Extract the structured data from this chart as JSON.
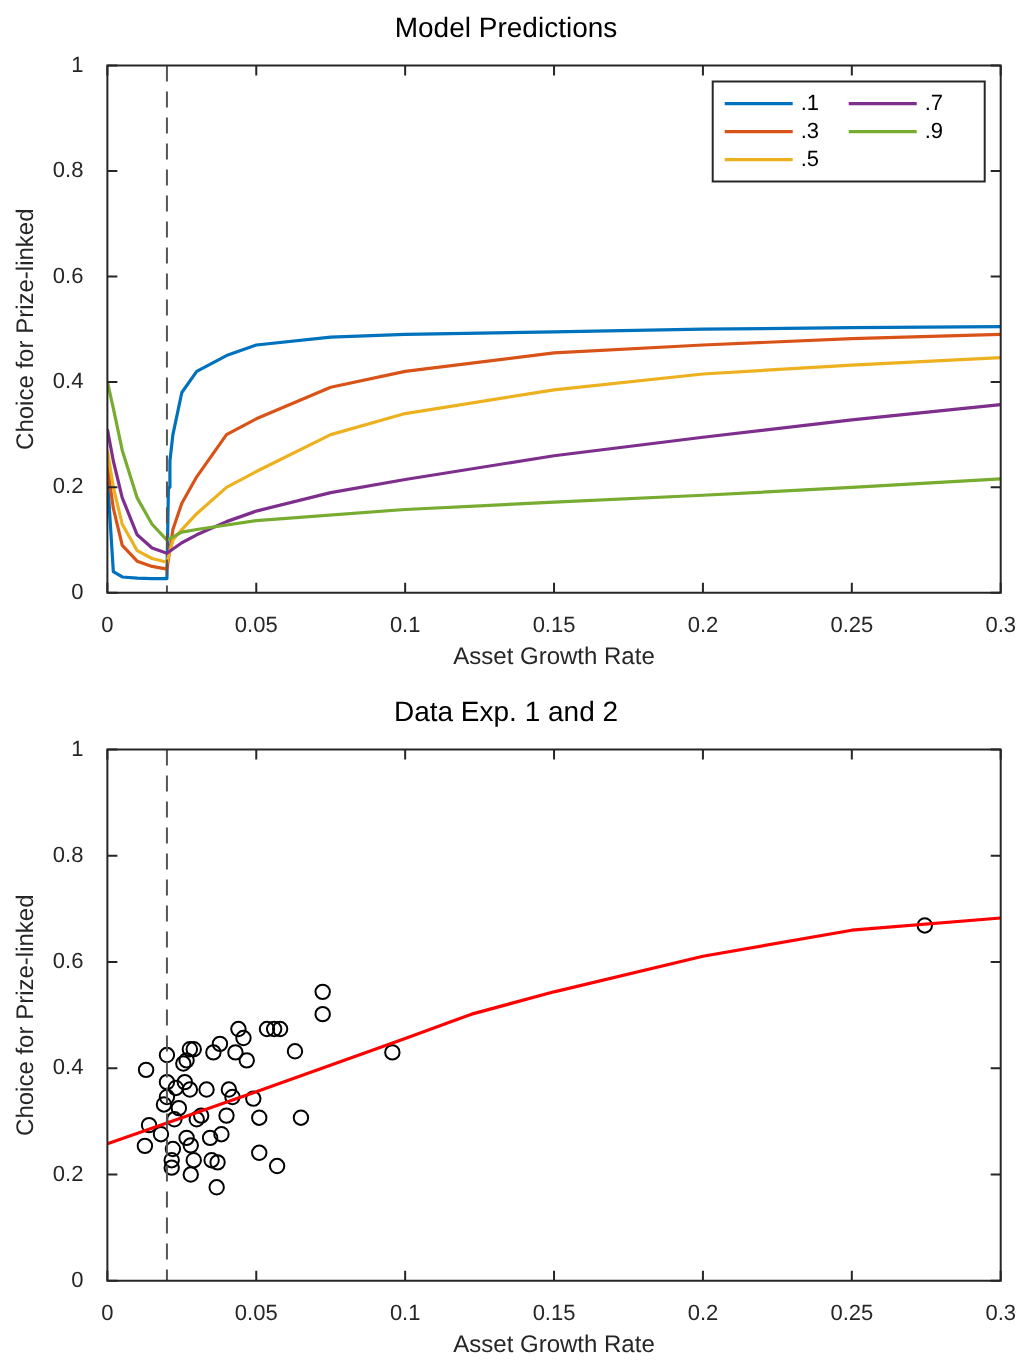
{
  "chart_data": [
    {
      "type": "line",
      "title": "Model Predictions",
      "xlabel": "Asset Growth Rate",
      "ylabel": "Choice for Prize-linked",
      "xlim": [
        0,
        0.3
      ],
      "ylim": [
        0,
        1
      ],
      "xticks": [
        0,
        0.05,
        0.1,
        0.15,
        0.2,
        0.25,
        0.3
      ],
      "yticks": [
        0,
        0.2,
        0.4,
        0.6,
        0.8,
        1
      ],
      "grid": false,
      "legend": "top right",
      "line_style": "solid",
      "ref_lines": [
        {
          "axis": "x",
          "value": 0.02,
          "color": "#555555",
          "line_style": "dashed"
        }
      ],
      "series": [
        {
          "name": ".1",
          "color": "#0072bd",
          "x": [
            0,
            0.002,
            0.005,
            0.01,
            0.015,
            0.02,
            0.0205,
            0.021,
            0.022,
            0.025,
            0.03,
            0.04,
            0.05,
            0.075,
            0.1,
            0.15,
            0.2,
            0.25,
            0.3
          ],
          "values": [
            0.22,
            0.04,
            0.03,
            0.028,
            0.027,
            0.027,
            0.2,
            0.25,
            0.3,
            0.38,
            0.42,
            0.45,
            0.47,
            0.485,
            0.49,
            0.495,
            0.5,
            0.503,
            0.505
          ]
        },
        {
          "name": ".3",
          "color": "#d95319",
          "x": [
            0,
            0.002,
            0.005,
            0.01,
            0.015,
            0.02,
            0.022,
            0.025,
            0.03,
            0.04,
            0.05,
            0.075,
            0.1,
            0.15,
            0.2,
            0.25,
            0.3
          ],
          "values": [
            0.24,
            0.16,
            0.09,
            0.06,
            0.05,
            0.045,
            0.12,
            0.17,
            0.22,
            0.3,
            0.33,
            0.39,
            0.42,
            0.455,
            0.47,
            0.482,
            0.49
          ]
        },
        {
          "name": ".5",
          "color": "#edb120",
          "x": [
            0,
            0.002,
            0.005,
            0.01,
            0.015,
            0.02,
            0.022,
            0.025,
            0.03,
            0.04,
            0.05,
            0.075,
            0.1,
            0.15,
            0.2,
            0.25,
            0.3
          ],
          "values": [
            0.27,
            0.2,
            0.13,
            0.08,
            0.065,
            0.058,
            0.1,
            0.12,
            0.15,
            0.2,
            0.23,
            0.3,
            0.34,
            0.385,
            0.415,
            0.432,
            0.446
          ]
        },
        {
          "name": ".7",
          "color": "#7e2f8e",
          "x": [
            0,
            0.002,
            0.005,
            0.01,
            0.015,
            0.02,
            0.025,
            0.03,
            0.04,
            0.05,
            0.075,
            0.1,
            0.15,
            0.2,
            0.25,
            0.3
          ],
          "values": [
            0.31,
            0.25,
            0.18,
            0.11,
            0.085,
            0.075,
            0.095,
            0.11,
            0.135,
            0.155,
            0.19,
            0.215,
            0.26,
            0.295,
            0.328,
            0.357
          ]
        },
        {
          "name": ".9",
          "color": "#77ac30",
          "x": [
            0,
            0.002,
            0.005,
            0.01,
            0.015,
            0.02,
            0.025,
            0.03,
            0.05,
            0.1,
            0.15,
            0.2,
            0.25,
            0.3
          ],
          "values": [
            0.4,
            0.35,
            0.27,
            0.18,
            0.13,
            0.1,
            0.115,
            0.12,
            0.137,
            0.158,
            0.172,
            0.185,
            0.2,
            0.216
          ]
        }
      ]
    },
    {
      "type": "scatter",
      "title": "Data Exp. 1 and 2",
      "xlabel": "Asset Growth Rate",
      "ylabel": "Choice for Prize-linked",
      "xlim": [
        0,
        0.3
      ],
      "ylim": [
        0,
        1
      ],
      "xticks": [
        0,
        0.05,
        0.1,
        0.15,
        0.2,
        0.25,
        0.3
      ],
      "yticks": [
        0,
        0.2,
        0.4,
        0.6,
        0.8,
        1
      ],
      "grid": false,
      "legend": false,
      "ref_lines": [
        {
          "axis": "x",
          "value": 0.02,
          "color": "#555555",
          "line_style": "dashed"
        }
      ],
      "series": [
        {
          "color": "#000000",
          "marker": "circle",
          "x": [
            0.013,
            0.02,
            0.02,
            0.0126,
            0.014,
            0.018,
            0.019,
            0.02,
            0.0216,
            0.0216,
            0.022,
            0.0225,
            0.023,
            0.024,
            0.0255,
            0.0266,
            0.0277,
            0.029,
            0.026,
            0.0277,
            0.0266,
            0.028,
            0.028,
            0.029,
            0.03,
            0.0315,
            0.0333,
            0.0345,
            0.035,
            0.0356,
            0.0367,
            0.0378,
            0.037,
            0.0383,
            0.04,
            0.0408,
            0.042,
            0.043,
            0.044,
            0.0457,
            0.0468,
            0.049,
            0.051,
            0.051,
            0.0536,
            0.056,
            0.058,
            0.057,
            0.063,
            0.065,
            0.0723,
            0.0723,
            0.0957,
            0.2745
          ],
          "values": [
            0.397,
            0.425,
            0.374,
            0.254,
            0.293,
            0.276,
            0.332,
            0.346,
            0.227,
            0.213,
            0.248,
            0.304,
            0.363,
            0.325,
            0.409,
            0.415,
            0.436,
            0.436,
            0.374,
            0.36,
            0.269,
            0.255,
            0.2,
            0.227,
            0.304,
            0.311,
            0.36,
            0.269,
            0.227,
            0.43,
            0.176,
            0.446,
            0.223,
            0.276,
            0.311,
            0.36,
            0.346,
            0.43,
            0.474,
            0.457,
            0.415,
            0.343,
            0.307,
            0.241,
            0.474,
            0.474,
            0.474,
            0.216,
            0.432,
            0.307,
            0.544,
            0.502,
            0.43,
            0.669
          ]
        },
        {
          "type": "line",
          "color": "#ff0000",
          "x": [
            0,
            0.05,
            0.1,
            0.1223,
            0.15,
            0.2,
            0.25,
            0.3
          ],
          "values": [
            0.258,
            0.356,
            0.456,
            0.502,
            0.544,
            0.611,
            0.66,
            0.683
          ]
        }
      ]
    }
  ]
}
